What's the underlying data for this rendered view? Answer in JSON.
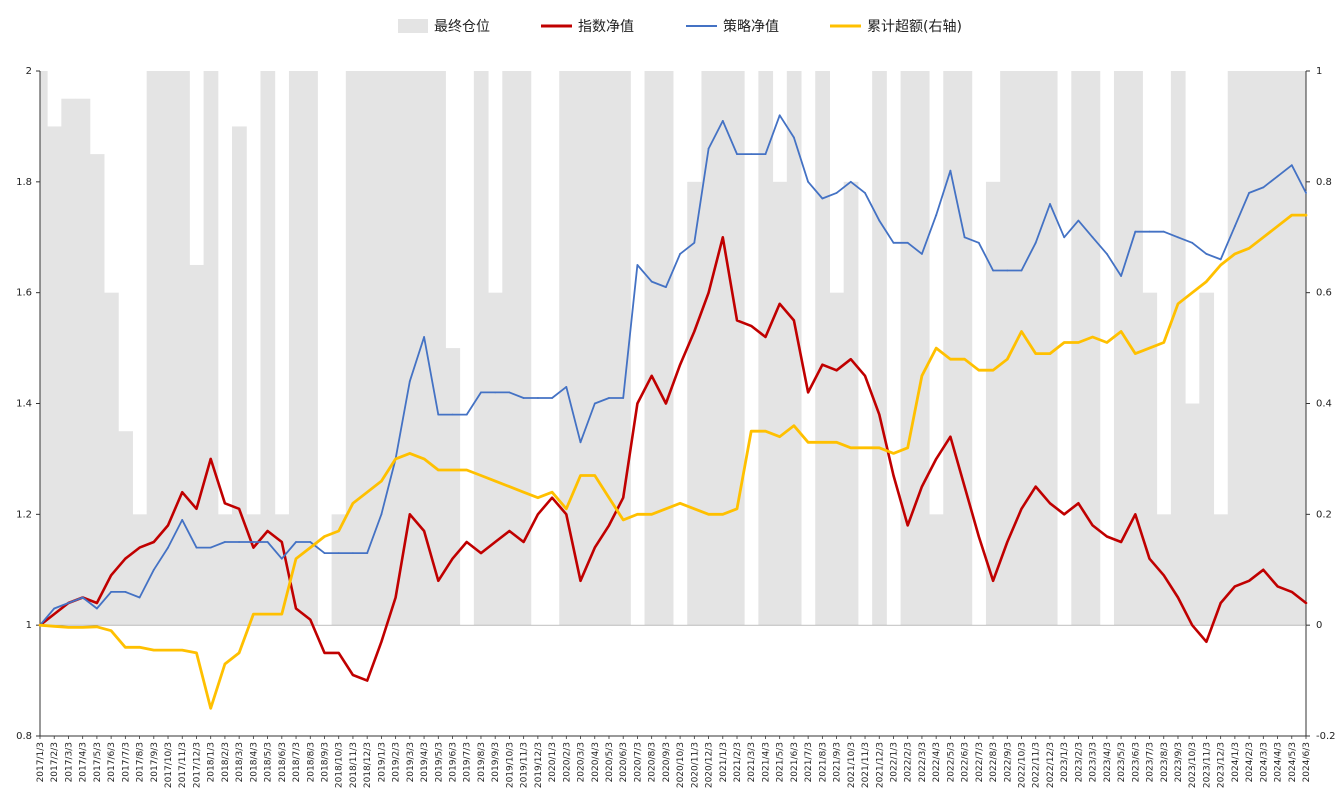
{
  "chart_data": {
    "type": "line",
    "title": "",
    "legend": {
      "placement": "top-center",
      "items": [
        {
          "label": "最终仓位",
          "color": "#e4e4e4",
          "kind": "area"
        },
        {
          "label": "指数净值",
          "color": "#c00000",
          "kind": "line"
        },
        {
          "label": "策略净值",
          "color": "#4472c4",
          "kind": "line"
        },
        {
          "label": "累计超额(右轴)",
          "color": "#ffc000",
          "kind": "line"
        }
      ]
    },
    "y_left": {
      "min": 0.8,
      "max": 2.0,
      "ticks": [
        "0.8",
        "1",
        "1.2",
        "1.4",
        "1.6",
        "1.8",
        "2"
      ]
    },
    "y_right": {
      "min": -0.2,
      "max": 1.0,
      "ticks": [
        "-0.2",
        "0",
        "0.2",
        "0.4",
        "0.6",
        "0.8",
        "1"
      ]
    },
    "x_tick_labels": [
      "2017/1/3",
      "2017/2/3",
      "2017/3/3",
      "2017/4/3",
      "2017/5/3",
      "2017/6/3",
      "2017/7/3",
      "2017/8/3",
      "2017/9/3",
      "2017/10/3",
      "2017/11/3",
      "2017/12/3",
      "2018/1/3",
      "2018/2/3",
      "2018/3/3",
      "2018/4/3",
      "2018/5/3",
      "2018/6/3",
      "2018/7/3",
      "2018/8/3",
      "2018/9/3",
      "2018/10/3",
      "2018/11/3",
      "2018/12/3",
      "2019/1/3",
      "2019/2/3",
      "2019/3/3",
      "2019/4/3",
      "2019/5/3",
      "2019/6/3",
      "2019/7/3",
      "2019/8/3",
      "2019/9/3",
      "2019/10/3",
      "2019/11/3",
      "2019/12/3",
      "2020/1/3",
      "2020/2/3",
      "2020/3/3",
      "2020/4/3",
      "2020/5/3",
      "2020/6/3",
      "2020/7/3",
      "2020/8/3",
      "2020/9/3",
      "2020/10/3",
      "2020/11/3",
      "2020/12/3",
      "2021/1/3",
      "2021/2/3",
      "2021/3/3",
      "2021/4/3",
      "2021/5/3",
      "2021/6/3",
      "2021/7/3",
      "2021/8/3",
      "2021/9/3",
      "2021/10/3",
      "2021/11/3",
      "2021/12/3",
      "2022/1/3",
      "2022/2/3",
      "2022/3/3",
      "2022/4/3",
      "2022/5/3",
      "2022/6/3",
      "2022/7/3",
      "2022/8/3",
      "2022/9/3",
      "2022/10/3",
      "2022/11/3",
      "2022/12/3",
      "2023/1/3",
      "2023/2/3",
      "2023/3/3",
      "2023/4/3",
      "2023/5/3",
      "2023/6/3",
      "2023/7/3",
      "2023/8/3",
      "2023/9/3",
      "2023/10/3",
      "2023/11/3",
      "2023/12/3",
      "2024/1/3",
      "2024/2/3",
      "2024/3/3",
      "2024/4/3",
      "2024/5/3",
      "2024/6/3"
    ],
    "series": [
      {
        "name": "最终仓位",
        "axis": "right",
        "type": "area",
        "values": [
          1.0,
          0.9,
          0.95,
          0.95,
          0.85,
          0.6,
          0.35,
          0.2,
          1.0,
          1.0,
          1.0,
          0.65,
          1.0,
          0.2,
          0.9,
          0.2,
          1.0,
          0.2,
          1.0,
          1.0,
          0.0,
          0.2,
          1.0,
          1.0,
          1.0,
          1.0,
          1.0,
          1.0,
          1.0,
          0.5,
          0.0,
          1.0,
          0.6,
          1.0,
          1.0,
          0.0,
          0.0,
          1.0,
          1.0,
          1.0,
          1.0,
          1.0,
          0.0,
          1.0,
          1.0,
          0.0,
          0.8,
          1.0,
          1.0,
          1.0,
          0.0,
          1.0,
          0.8,
          1.0,
          0.0,
          1.0,
          0.6,
          0.8,
          0.0,
          1.0,
          0.0,
          1.0,
          1.0,
          0.2,
          1.0,
          1.0,
          0.0,
          0.8,
          1.0,
          1.0,
          1.0,
          1.0,
          0.0,
          1.0,
          1.0,
          0.0,
          1.0,
          1.0,
          0.6,
          0.2,
          1.0,
          0.4,
          0.6,
          0.2,
          1.0,
          1.0,
          1.0,
          1.0,
          1.0,
          1.0
        ]
      },
      {
        "name": "指数净值",
        "axis": "left",
        "type": "line",
        "values": [
          1.0,
          1.02,
          1.04,
          1.05,
          1.04,
          1.09,
          1.12,
          1.14,
          1.15,
          1.18,
          1.24,
          1.21,
          1.3,
          1.22,
          1.21,
          1.14,
          1.17,
          1.15,
          1.03,
          1.01,
          0.95,
          0.95,
          0.91,
          0.9,
          0.97,
          1.05,
          1.2,
          1.17,
          1.08,
          1.12,
          1.15,
          1.13,
          1.15,
          1.17,
          1.15,
          1.2,
          1.23,
          1.2,
          1.08,
          1.14,
          1.18,
          1.23,
          1.4,
          1.45,
          1.4,
          1.47,
          1.53,
          1.6,
          1.7,
          1.55,
          1.54,
          1.52,
          1.58,
          1.55,
          1.42,
          1.47,
          1.46,
          1.48,
          1.45,
          1.38,
          1.27,
          1.18,
          1.25,
          1.3,
          1.34,
          1.25,
          1.16,
          1.08,
          1.15,
          1.21,
          1.25,
          1.22,
          1.2,
          1.22,
          1.18,
          1.16,
          1.15,
          1.2,
          1.12,
          1.09,
          1.05,
          1.0,
          0.97,
          1.04,
          1.07,
          1.08,
          1.1,
          1.07,
          1.06,
          1.04
        ]
      },
      {
        "name": "策略净值",
        "axis": "left",
        "type": "line",
        "values": [
          1.0,
          1.03,
          1.04,
          1.05,
          1.03,
          1.06,
          1.06,
          1.05,
          1.1,
          1.14,
          1.19,
          1.14,
          1.14,
          1.15,
          1.15,
          1.15,
          1.15,
          1.12,
          1.15,
          1.15,
          1.13,
          1.13,
          1.13,
          1.13,
          1.2,
          1.3,
          1.44,
          1.52,
          1.38,
          1.38,
          1.38,
          1.42,
          1.42,
          1.42,
          1.41,
          1.41,
          1.41,
          1.43,
          1.33,
          1.4,
          1.41,
          1.41,
          1.65,
          1.62,
          1.61,
          1.67,
          1.69,
          1.86,
          1.91,
          1.85,
          1.85,
          1.85,
          1.92,
          1.88,
          1.8,
          1.77,
          1.78,
          1.8,
          1.78,
          1.73,
          1.69,
          1.69,
          1.67,
          1.74,
          1.82,
          1.7,
          1.69,
          1.64,
          1.64,
          1.64,
          1.69,
          1.76,
          1.7,
          1.73,
          1.7,
          1.67,
          1.63,
          1.71,
          1.71,
          1.71,
          1.7,
          1.69,
          1.67,
          1.66,
          1.72,
          1.78,
          1.79,
          1.81,
          1.83,
          1.78
        ]
      },
      {
        "name": "累计超额(右轴)",
        "axis": "right",
        "type": "line",
        "values": [
          0.0,
          -0.002,
          -0.004,
          -0.004,
          -0.003,
          -0.01,
          -0.04,
          -0.04,
          -0.045,
          -0.045,
          -0.045,
          -0.05,
          -0.15,
          -0.07,
          -0.05,
          0.02,
          0.02,
          0.02,
          0.12,
          0.14,
          0.16,
          0.17,
          0.22,
          0.24,
          0.26,
          0.3,
          0.31,
          0.3,
          0.28,
          0.28,
          0.28,
          0.27,
          0.26,
          0.25,
          0.24,
          0.23,
          0.24,
          0.21,
          0.27,
          0.27,
          0.23,
          0.19,
          0.2,
          0.2,
          0.21,
          0.22,
          0.21,
          0.2,
          0.2,
          0.21,
          0.35,
          0.35,
          0.34,
          0.36,
          0.33,
          0.33,
          0.33,
          0.32,
          0.32,
          0.32,
          0.31,
          0.32,
          0.45,
          0.5,
          0.48,
          0.48,
          0.46,
          0.46,
          0.48,
          0.53,
          0.49,
          0.49,
          0.51,
          0.51,
          0.52,
          0.51,
          0.53,
          0.49,
          0.5,
          0.51,
          0.58,
          0.6,
          0.62,
          0.65,
          0.67,
          0.68,
          0.7,
          0.72,
          0.74,
          0.74
        ]
      }
    ]
  }
}
